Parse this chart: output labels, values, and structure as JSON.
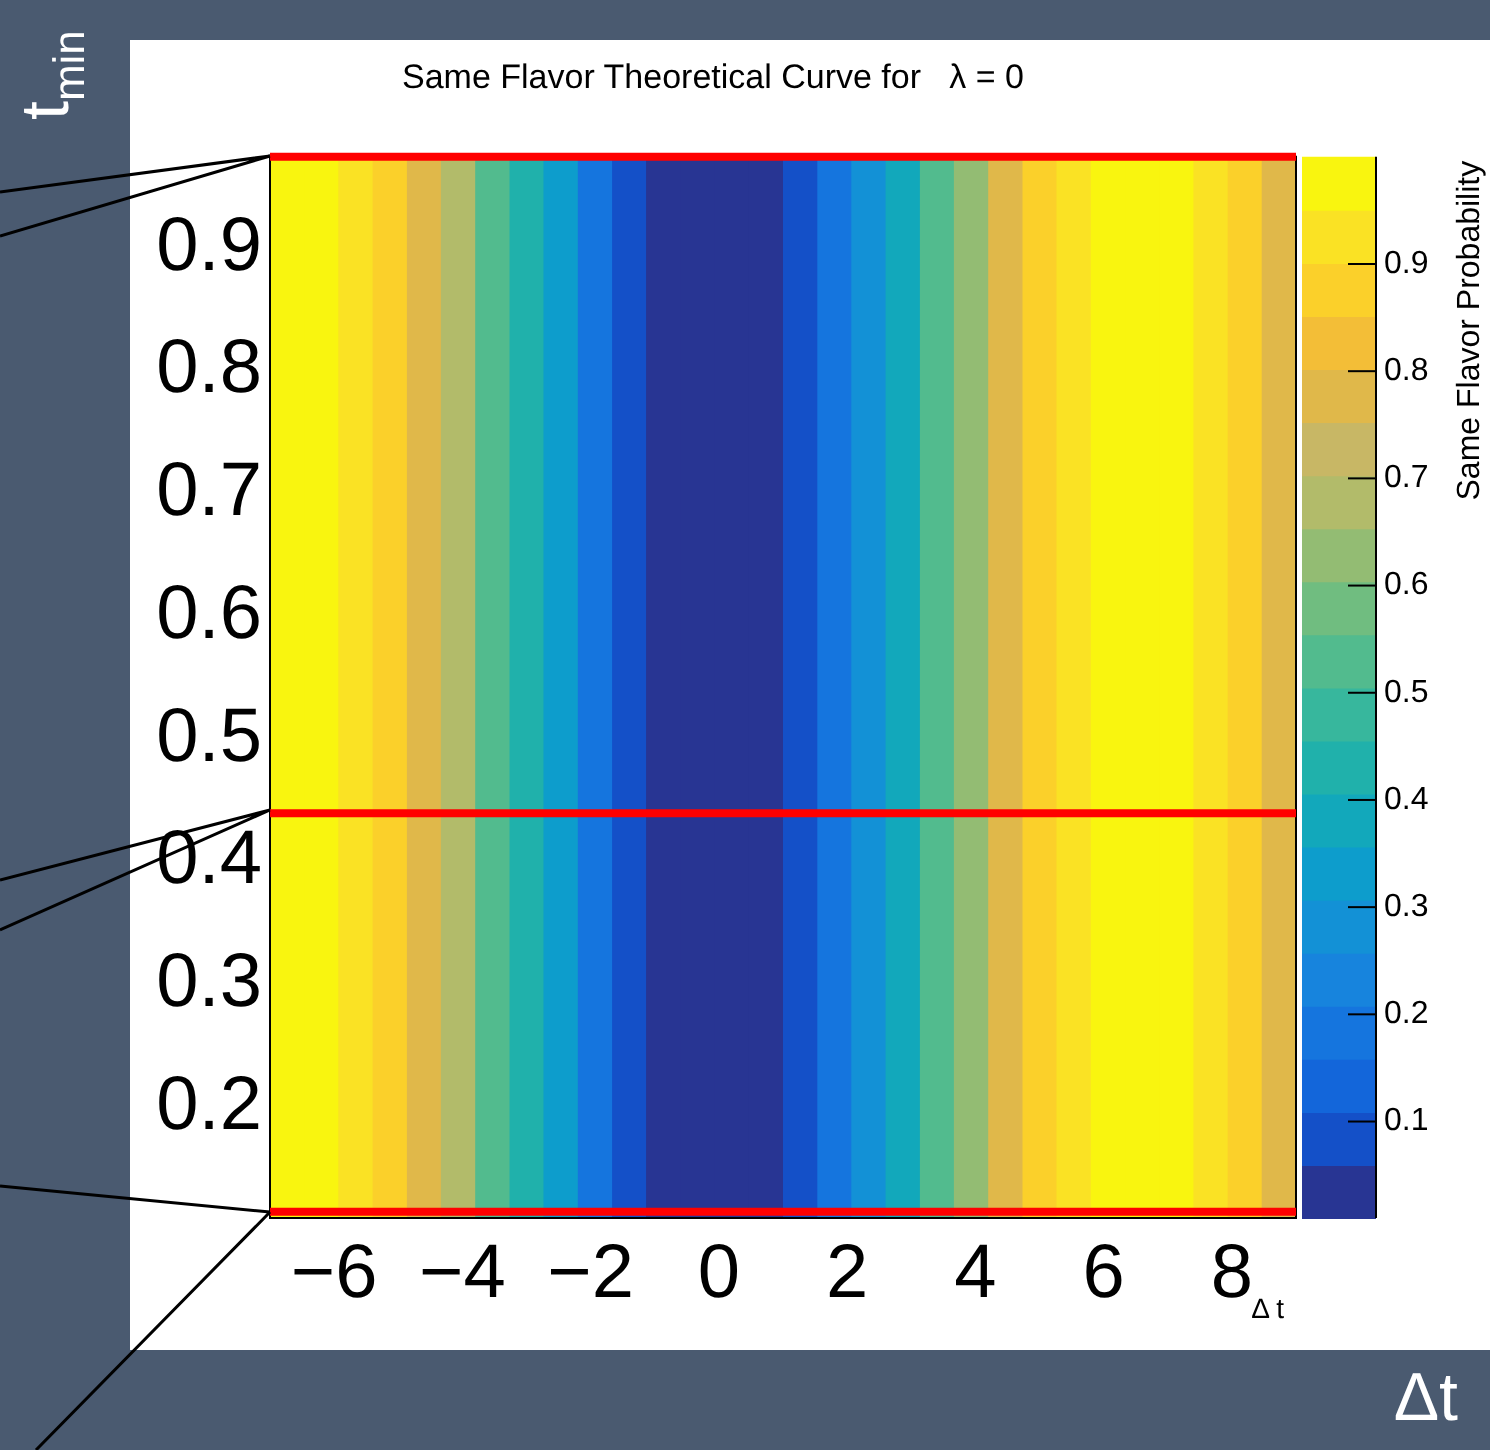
{
  "chart_data": {
    "type": "heatmap",
    "title": "Same Flavor Theoretical Curve for   λ = 0",
    "xlabel": "Δ t",
    "ylabel": "t$_{min}$",
    "clabel": "Same Flavor Probability",
    "annotations": [
      "Δt"
    ],
    "x": [
      -6.73,
      -6.2,
      -5.67,
      -5.13,
      -4.6,
      -4.07,
      -3.53,
      -3,
      -2.47,
      -1.93,
      -1.4,
      -0.87,
      -0.33,
      0.2,
      0.73,
      1.27,
      1.8,
      2.33,
      2.87,
      3.4,
      3.93,
      4.47,
      5,
      5.53,
      6.07,
      6.6,
      7.13,
      7.67,
      8.2,
      8.73
    ],
    "cells": [
      [
        0.99,
        0.99,
        0.93,
        0.88,
        0.79,
        0.68,
        0.55,
        0.43,
        0.31,
        0.2,
        0.1,
        0.04,
        0.02,
        0.02,
        0.03,
        0.09,
        0.17,
        0.28,
        0.4,
        0.52,
        0.65,
        0.76,
        0.86,
        0.94,
        0.98,
        1.0,
        0.98,
        0.93,
        0.86,
        0.76
      ]
    ],
    "clim": [
      0.01,
      1
    ],
    "cticks": [
      0.1,
      0.2,
      0.3,
      0.4,
      0.5,
      0.6,
      0.7,
      0.8,
      0.9
    ],
    "xlim": [
      -7,
      9
    ],
    "xticks": [
      {
        "value": -6,
        "label": "−6"
      },
      {
        "value": -4,
        "label": "−4"
      },
      {
        "value": -2,
        "label": "−2"
      },
      0,
      2,
      4,
      6,
      8
    ],
    "ylim": [
      0.11,
      0.975
    ],
    "yticks": [
      0.2,
      0.3,
      0.4,
      0.5,
      0.6,
      0.7,
      0.8,
      0.9
    ],
    "ref_lines": [
      {
        "axis": "y",
        "value": 0.975,
        "color": "#ff0000"
      },
      {
        "axis": "y",
        "value": 0.44,
        "color": "#ff0000"
      },
      {
        "axis": "y",
        "value": 0.115,
        "color": "#ff0000"
      }
    ],
    "legend": false
  }
}
